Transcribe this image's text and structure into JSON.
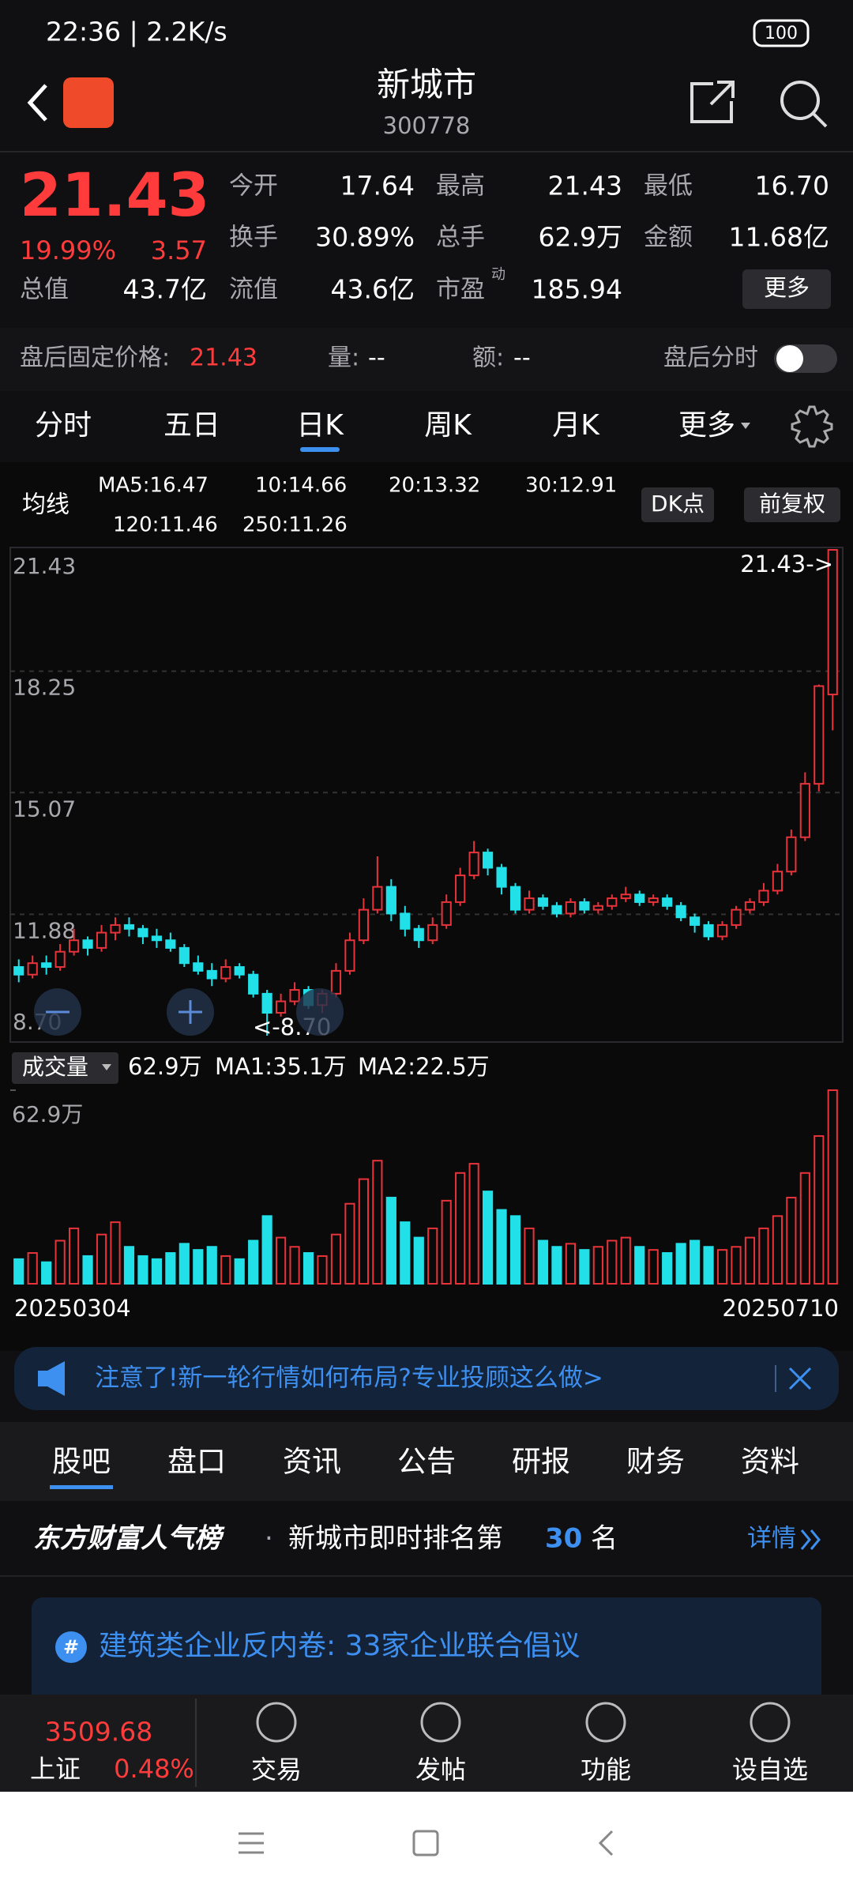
{
  "status": {
    "time": "22:36 | 2.2K/s",
    "battery": "100"
  },
  "header": {
    "title": "新城市",
    "code": "300778"
  },
  "quote": {
    "price": "21.43",
    "change_pct": "19.99%",
    "change": "3.57",
    "fields": [
      {
        "label": "今开",
        "value": "17.64",
        "color": "#3fd13f"
      },
      {
        "label": "最高",
        "value": "21.43",
        "color": "#ff3b3b"
      },
      {
        "label": "最低",
        "value": "16.70",
        "color": "#3fd13f"
      },
      {
        "label": "换手",
        "value": "30.89%",
        "color": "#ffffff"
      },
      {
        "label": "总手",
        "value": "62.9万",
        "color": "#ffffff"
      },
      {
        "label": "金额",
        "value": "11.68亿",
        "color": "#ffffff"
      }
    ],
    "row3": [
      {
        "label": "总值",
        "value": "43.7亿"
      },
      {
        "label": "流值",
        "value": "43.6亿"
      },
      {
        "label": "市盈",
        "sup": "动",
        "value": "185.94"
      }
    ],
    "more": "更多"
  },
  "after_hours": {
    "label": "盘后固定价格:",
    "price": "21.43",
    "volume_label": "量:",
    "volume": "--",
    "amount_label": "额:",
    "amount": "--",
    "toggle": "盘后分时"
  },
  "tabs": {
    "items": [
      "分时",
      "五日",
      "日K",
      "周K",
      "月K",
      "更多"
    ],
    "active": 2
  },
  "ma_legend": {
    "title": "均线",
    "items": [
      {
        "text": "MA5:16.47",
        "color": "#ffffff"
      },
      {
        "text": "10:14.66",
        "color": "#f5e23c"
      },
      {
        "text": "20:13.32",
        "color": "#e040e0"
      },
      {
        "text": "30:12.91",
        "color": "#2fb84a"
      },
      {
        "text": "120:11.46",
        "color": "#4f8fe8"
      },
      {
        "text": "250:11.26",
        "color": "#8cc8ff"
      }
    ],
    "buttons": [
      "DK点",
      "前复权"
    ]
  },
  "chart_data": [
    {
      "type": "candlestick",
      "ylim": [
        8.7,
        21.43
      ],
      "yticks": [
        {
          "value": 8.7,
          "label": "8.70"
        },
        11.88,
        15.07,
        18.25,
        21.43
      ],
      "grid": true,
      "up_color": "#e8333a",
      "down_color": "#22e0e8",
      "max_label": "21.43->",
      "min_label": "<-8.70",
      "x_start": "20250304",
      "x_end": "20250710",
      "candles": [
        [
          10.5,
          10.7,
          10.1,
          10.3
        ],
        [
          10.3,
          10.8,
          10.2,
          10.6
        ],
        [
          10.6,
          10.8,
          10.3,
          10.5
        ],
        [
          10.5,
          11.1,
          10.4,
          10.9
        ],
        [
          10.9,
          11.5,
          10.8,
          11.2
        ],
        [
          11.2,
          11.3,
          10.8,
          11.0
        ],
        [
          11.0,
          11.6,
          10.9,
          11.4
        ],
        [
          11.4,
          11.8,
          11.2,
          11.6
        ],
        [
          11.6,
          11.8,
          11.3,
          11.5
        ],
        [
          11.5,
          11.6,
          11.1,
          11.3
        ],
        [
          11.3,
          11.5,
          11.0,
          11.2
        ],
        [
          11.2,
          11.4,
          10.9,
          11.0
        ],
        [
          11.0,
          11.1,
          10.5,
          10.6
        ],
        [
          10.6,
          10.8,
          10.3,
          10.4
        ],
        [
          10.4,
          10.6,
          10.0,
          10.2
        ],
        [
          10.2,
          10.7,
          10.1,
          10.5
        ],
        [
          10.5,
          10.6,
          10.2,
          10.3
        ],
        [
          10.3,
          10.4,
          9.7,
          9.8
        ],
        [
          9.8,
          9.9,
          8.7,
          9.3
        ],
        [
          9.3,
          9.8,
          9.2,
          9.6
        ],
        [
          9.6,
          10.1,
          9.5,
          9.9
        ],
        [
          9.9,
          10.0,
          9.4,
          9.5
        ],
        [
          9.5,
          9.9,
          9.3,
          9.8
        ],
        [
          9.8,
          10.6,
          9.7,
          10.4
        ],
        [
          10.4,
          11.4,
          10.3,
          11.2
        ],
        [
          11.2,
          12.3,
          11.1,
          12.0
        ],
        [
          12.0,
          13.4,
          11.9,
          12.6
        ],
        [
          12.6,
          12.8,
          11.7,
          11.9
        ],
        [
          11.9,
          12.1,
          11.3,
          11.5
        ],
        [
          11.5,
          11.6,
          11.0,
          11.2
        ],
        [
          11.2,
          11.8,
          11.1,
          11.6
        ],
        [
          11.6,
          12.4,
          11.5,
          12.2
        ],
        [
          12.2,
          13.1,
          12.1,
          12.9
        ],
        [
          12.9,
          13.8,
          12.8,
          13.5
        ],
        [
          13.5,
          13.6,
          12.9,
          13.1
        ],
        [
          13.1,
          13.2,
          12.4,
          12.6
        ],
        [
          12.6,
          12.7,
          11.9,
          12.0
        ],
        [
          12.0,
          12.5,
          11.9,
          12.3
        ],
        [
          12.3,
          12.4,
          12.0,
          12.1
        ],
        [
          12.1,
          12.2,
          11.8,
          11.9
        ],
        [
          11.9,
          12.3,
          11.8,
          12.2
        ],
        [
          12.2,
          12.3,
          11.9,
          12.0
        ],
        [
          12.0,
          12.2,
          11.9,
          12.1
        ],
        [
          12.1,
          12.4,
          12.0,
          12.3
        ],
        [
          12.3,
          12.6,
          12.2,
          12.4
        ],
        [
          12.4,
          12.5,
          12.1,
          12.2
        ],
        [
          12.2,
          12.4,
          12.1,
          12.3
        ],
        [
          12.3,
          12.4,
          12.0,
          12.1
        ],
        [
          12.1,
          12.2,
          11.7,
          11.8
        ],
        [
          11.8,
          11.9,
          11.4,
          11.6
        ],
        [
          11.6,
          11.7,
          11.2,
          11.3
        ],
        [
          11.3,
          11.7,
          11.2,
          11.6
        ],
        [
          11.6,
          12.1,
          11.5,
          12.0
        ],
        [
          12.0,
          12.3,
          11.9,
          12.2
        ],
        [
          12.2,
          12.7,
          12.1,
          12.5
        ],
        [
          12.5,
          13.2,
          12.4,
          13.0
        ],
        [
          13.0,
          14.1,
          12.9,
          13.9
        ],
        [
          13.9,
          15.6,
          13.8,
          15.3
        ],
        [
          15.3,
          17.9,
          15.1,
          17.86
        ],
        [
          17.64,
          21.43,
          16.7,
          21.43
        ]
      ]
    },
    {
      "type": "bar",
      "title": "成交量",
      "ylim": [
        0,
        62.9
      ],
      "yticks": [
        {
          "value": 62.9,
          "label": "62.9万"
        }
      ],
      "legend": [
        {
          "text": "62.9万",
          "color": "#ffffff"
        },
        {
          "text": "MA1:35.1万",
          "color": "#f5e23c"
        },
        {
          "text": "MA2:22.5万",
          "color": "#e040e0"
        }
      ],
      "values": [
        8,
        10,
        7,
        14,
        18,
        9,
        16,
        20,
        12,
        9,
        8,
        10,
        13,
        11,
        12,
        9,
        8,
        14,
        22,
        15,
        12,
        10,
        9,
        16,
        26,
        34,
        40,
        28,
        20,
        15,
        18,
        27,
        36,
        39,
        30,
        24,
        22,
        18,
        14,
        12,
        13,
        11,
        12,
        14,
        15,
        12,
        11,
        10,
        13,
        14,
        12,
        11,
        12,
        15,
        18,
        22,
        28,
        36,
        48,
        62.9
      ]
    }
  ],
  "banner": {
    "text": "注意了!新一轮行情如何布局?专业投顾这么做>"
  },
  "bottom_tabs": {
    "items": [
      "股吧",
      "盘口",
      "资讯",
      "公告",
      "研报",
      "财务",
      "资料"
    ],
    "active": 0
  },
  "rank": {
    "brand": "东方财富人气榜",
    "text": "新城市即时排名第",
    "rank": "30",
    "unit": "名",
    "link": "详情"
  },
  "card": {
    "title": "建筑类企业反内卷: 33家企业联合倡议"
  },
  "index": {
    "value": "3509.68",
    "name": "上证",
    "change": "0.48%"
  },
  "nav": [
    "交易",
    "发帖",
    "功能",
    "设自选"
  ]
}
